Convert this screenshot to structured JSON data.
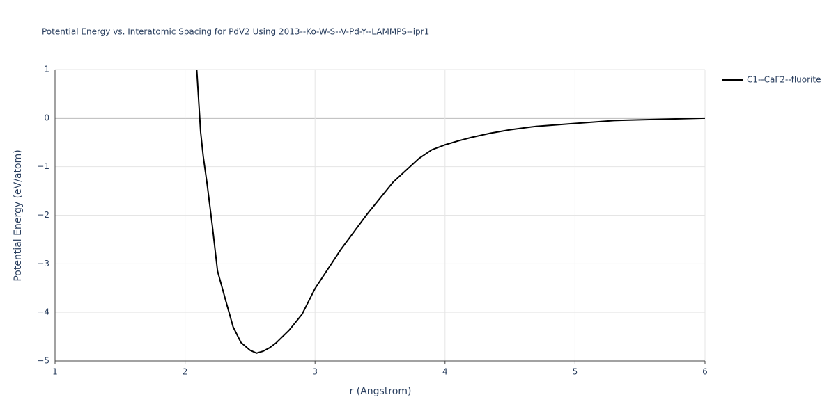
{
  "chart_data": {
    "type": "line",
    "title": "Potential Energy vs. Interatomic Spacing for PdV2 Using 2013--Ko-W-S--V-Pd-Y--LAMMPS--ipr1",
    "xlabel": "r (Angstrom)",
    "ylabel": "Potential Energy (eV/atom)",
    "x": [
      2.09,
      2.12,
      2.14,
      2.17,
      2.21,
      2.25,
      2.31,
      2.37,
      2.43,
      2.5,
      2.55,
      2.6,
      2.65,
      2.7,
      2.8,
      2.9,
      3.0,
      3.2,
      3.4,
      3.5,
      3.6,
      3.8,
      3.9,
      4.0,
      4.1,
      4.2,
      4.35,
      4.5,
      4.7,
      5.0,
      5.3,
      5.6,
      6.0
    ],
    "series": [
      {
        "name": "C1--CaF2--fluorite",
        "color": "#000000",
        "values": [
          1.0,
          -0.29,
          -0.79,
          -1.36,
          -2.22,
          -3.15,
          -3.73,
          -4.3,
          -4.62,
          -4.78,
          -4.84,
          -4.8,
          -4.73,
          -4.63,
          -4.37,
          -4.04,
          -3.51,
          -2.7,
          -1.98,
          -1.65,
          -1.32,
          -0.83,
          -0.65,
          -0.55,
          -0.47,
          -0.4,
          -0.31,
          -0.24,
          -0.17,
          -0.11,
          -0.05,
          -0.03,
          0.0
        ]
      }
    ],
    "xlim": [
      1,
      6
    ],
    "xticks": [
      1,
      2,
      3,
      4,
      5,
      6
    ],
    "ylim": [
      -5,
      1
    ],
    "yticks": [
      {
        "value": -5,
        "label": "−5"
      },
      {
        "value": -4,
        "label": "−4"
      },
      {
        "value": -3,
        "label": "−3"
      },
      {
        "value": -2,
        "label": "−2"
      },
      {
        "value": -1,
        "label": "−1"
      },
      0,
      1
    ],
    "grid": true,
    "legend": "right"
  }
}
